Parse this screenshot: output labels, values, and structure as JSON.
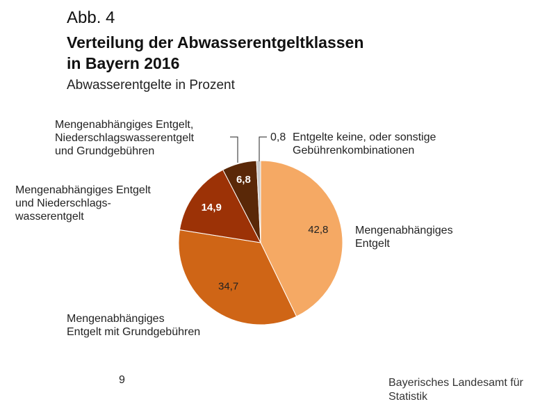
{
  "figure": {
    "number": "Abb. 4",
    "title_line1": "Verteilung der Abwasserentgeltklassen",
    "title_line2": "in Bayern 2016",
    "subtitle": "Abwasserentgelte in Prozent"
  },
  "chart_data": {
    "type": "pie",
    "title": "Verteilung der Abwasserentgeltklassen in Bayern 2016",
    "subtitle": "Abwasserentgelte in Prozent",
    "unit": "Prozent",
    "slices": [
      {
        "label": "Mengenabhängiges Entgelt",
        "value": 42.8,
        "value_text": "42,8",
        "color": "#f5a964"
      },
      {
        "label": "Mengenabhängiges Entgelt mit Grundgebühren",
        "value": 34.7,
        "value_text": "34,7",
        "color": "#cf6516"
      },
      {
        "label": "Mengenabhängiges Entgelt und Niederschlagswasserentgelt",
        "value": 14.9,
        "value_text": "14,9",
        "color": "#9c3206"
      },
      {
        "label": "Mengenabhängiges Entgelt, Niederschlagswasserentgelt und Grundgebühren",
        "value": 6.8,
        "value_text": "6,8",
        "color": "#5a2808"
      },
      {
        "label": "Entgelte keine, oder sonstige Gebührenkombinationen",
        "value": 0.8,
        "value_text": "0,8",
        "color": "#c8c8c8"
      }
    ],
    "category_labels": {
      "s1": [
        "Mengenabhängiges",
        "Entgelt"
      ],
      "s2": [
        "Mengenabhängiges",
        "Entgelt mit Grundgebühren"
      ],
      "s3": [
        "Mengenabhängiges Entgelt",
        "und Niederschlags-",
        "wasserentgelt"
      ],
      "s4": [
        "Mengenabhängiges Entgelt,",
        "Niederschlagswasserentgelt",
        "und Grundgebühren"
      ],
      "s5": [
        "Entgelte keine, oder sonstige",
        "Gebührenkombinationen"
      ]
    },
    "value_label_colors": [
      "#222222",
      "#222222",
      "#ffffff",
      "#ffffff"
    ],
    "start": "12 o'clock, clockwise"
  },
  "footer": {
    "page_number": "9",
    "source_line1": "Bayerisches Landesamt für",
    "source_line2": "Statistik"
  }
}
